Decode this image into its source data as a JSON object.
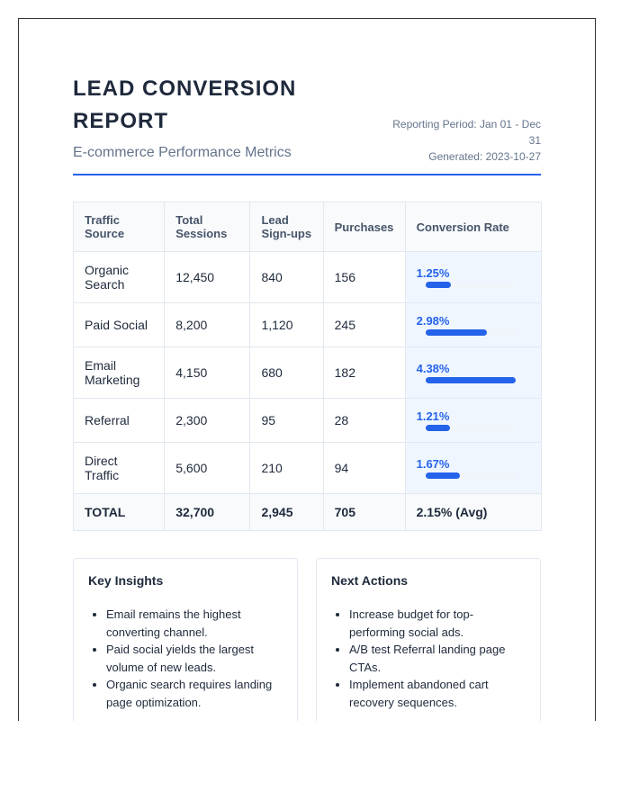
{
  "header": {
    "title": "LEAD CONVERSION REPORT",
    "subtitle": "E-commerce Performance Metrics",
    "period": "Reporting Period: Jan 01 - Dec 31",
    "generated": "Generated: 2023-10-27"
  },
  "table": {
    "columns": [
      "Traffic Source",
      "Total Sessions",
      "Lead Sign-ups",
      "Purchases",
      "Conversion Rate"
    ],
    "rows": [
      [
        "Organic Search",
        "12,450",
        "840",
        "156",
        {
          "value": 1.25,
          "label": "1.25%"
        }
      ],
      [
        "Paid Social",
        "8,200",
        "1,120",
        "245",
        {
          "value": 2.98,
          "label": "2.98%"
        }
      ],
      [
        "Email Marketing",
        "4,150",
        "680",
        "182",
        {
          "value": 4.38,
          "label": "4.38%"
        }
      ],
      [
        "Referral",
        "2,300",
        "95",
        "28",
        {
          "value": 1.21,
          "label": "1.21%"
        }
      ],
      [
        "Direct Traffic",
        "5,600",
        "210",
        "94",
        {
          "value": 1.67,
          "label": "1.67%"
        }
      ]
    ],
    "total": [
      "TOTAL",
      "32,700",
      "2,945",
      "705",
      "2.15% (Avg)"
    ]
  },
  "panels": [
    {
      "title": "Key Insights",
      "items": [
        "Email remains the highest converting channel.",
        "Paid social yields the largest volume of new leads.",
        "Organic search requires landing page optimization."
      ]
    },
    {
      "title": "Next Actions",
      "items": [
        "Increase budget for top-performing social ads.",
        "A/B test Referral landing page CTAs.",
        "Implement abandoned cart recovery sequences."
      ]
    }
  ]
}
